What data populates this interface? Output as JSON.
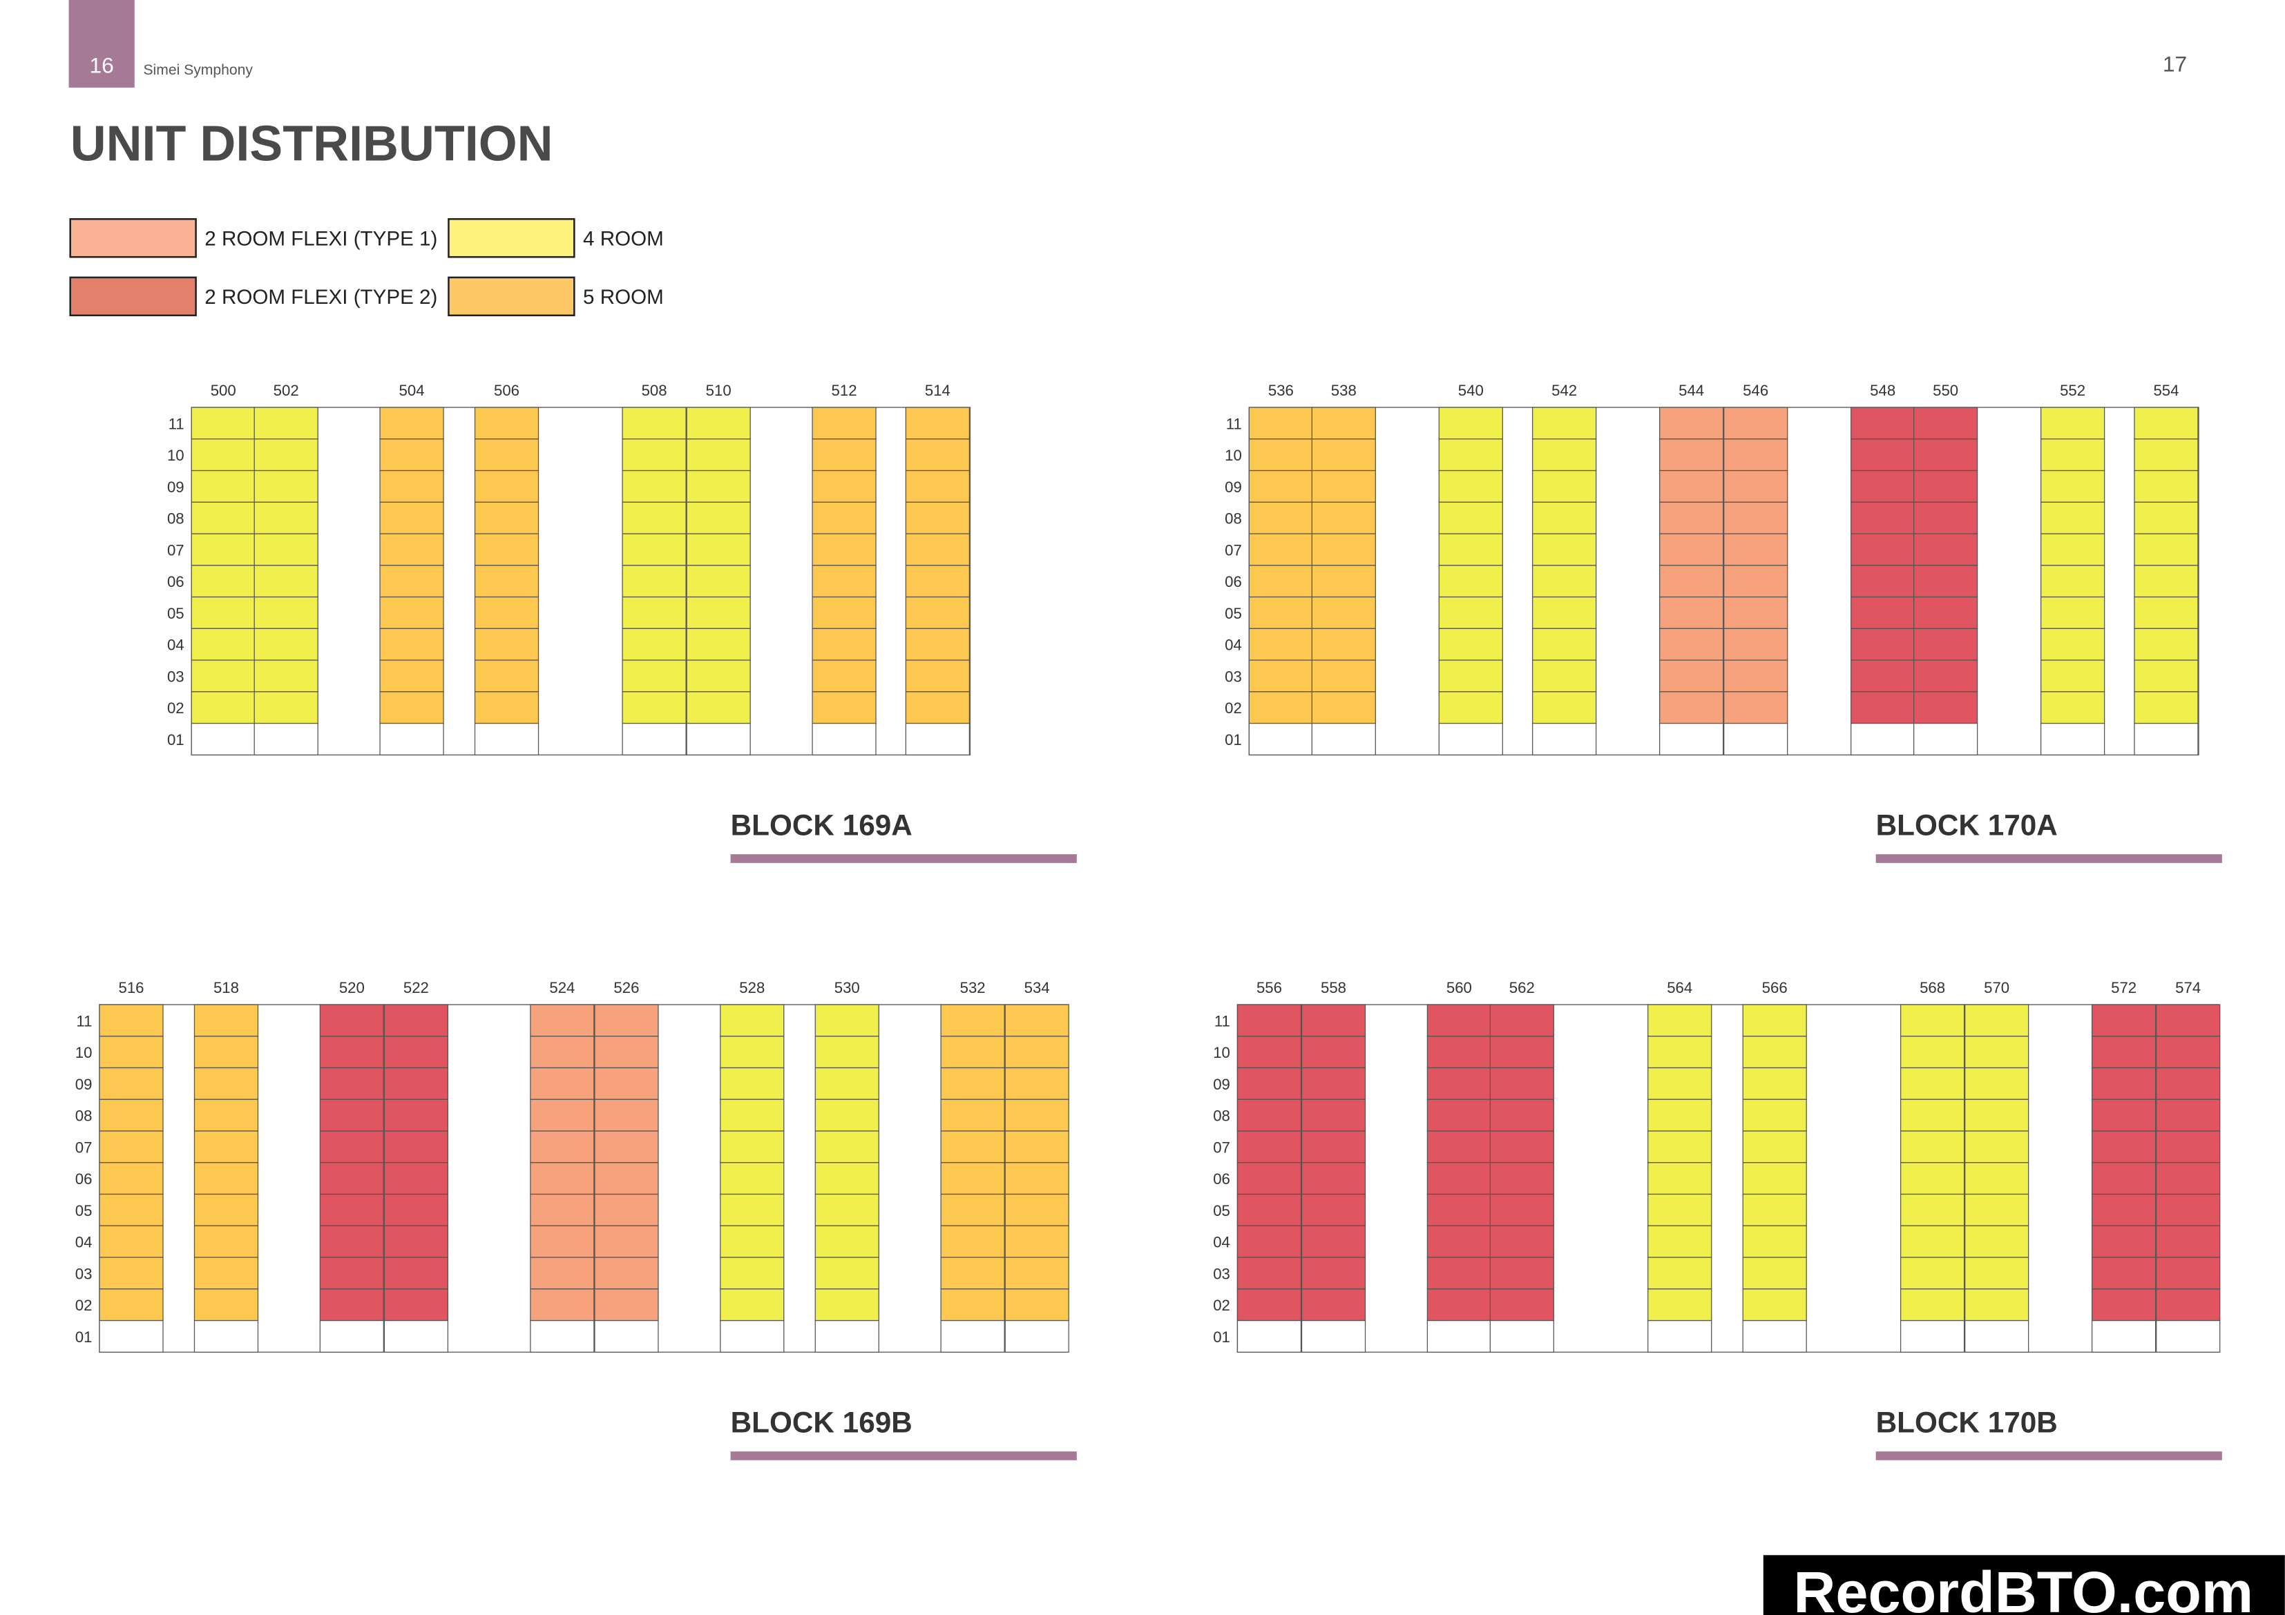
{
  "header": {
    "page_left": "16",
    "brand": "Simei Symphony",
    "page_right": "17"
  },
  "title": "UNIT DISTRIBUTION",
  "legend": [
    {
      "label": "2 ROOM FLEXI (TYPE 1)",
      "color": "#f9b394",
      "cell_color": "#f6a37d"
    },
    {
      "label": "2 ROOM FLEXI (TYPE 2)",
      "color": "#e2806c",
      "cell_color": "#e0555f"
    },
    {
      "label": "4 ROOM",
      "color": "#fff27a",
      "cell_color": "#f0ef4c"
    },
    {
      "label": "5 ROOM",
      "color": "#fdc865",
      "cell_color": "#fdc84f"
    }
  ],
  "floors": [
    "11",
    "10",
    "09",
    "08",
    "07",
    "06",
    "05",
    "04",
    "03",
    "02",
    "01"
  ],
  "blocks": [
    {
      "name": "BLOCK 169A",
      "units": [
        {
          "label": "500",
          "type": 2
        },
        {
          "label": "502",
          "type": 2
        },
        {
          "label": "504",
          "type": 3
        },
        {
          "label": "506",
          "type": 3
        },
        {
          "label": "508",
          "type": 2
        },
        {
          "label": "510",
          "type": 2
        },
        {
          "label": "512",
          "type": 3
        },
        {
          "label": "514",
          "type": 3
        }
      ]
    },
    {
      "name": "BLOCK 170A",
      "units": [
        {
          "label": "536",
          "type": 3
        },
        {
          "label": "538",
          "type": 3
        },
        {
          "label": "540",
          "type": 2
        },
        {
          "label": "542",
          "type": 2
        },
        {
          "label": "544",
          "type": 0
        },
        {
          "label": "546",
          "type": 0
        },
        {
          "label": "548",
          "type": 1
        },
        {
          "label": "550",
          "type": 1
        },
        {
          "label": "552",
          "type": 2
        },
        {
          "label": "554",
          "type": 2
        }
      ]
    },
    {
      "name": "BLOCK 169B",
      "units": [
        {
          "label": "516",
          "type": 3
        },
        {
          "label": "518",
          "type": 3
        },
        {
          "label": "520",
          "type": 1
        },
        {
          "label": "522",
          "type": 1
        },
        {
          "label": "524",
          "type": 0
        },
        {
          "label": "526",
          "type": 0
        },
        {
          "label": "528",
          "type": 2
        },
        {
          "label": "530",
          "type": 2
        },
        {
          "label": "532",
          "type": 3
        },
        {
          "label": "534",
          "type": 3
        }
      ]
    },
    {
      "name": "BLOCK 170B",
      "units": [
        {
          "label": "556",
          "type": 1
        },
        {
          "label": "558",
          "type": 1
        },
        {
          "label": "560",
          "type": 1
        },
        {
          "label": "562",
          "type": 1
        },
        {
          "label": "564",
          "type": 2
        },
        {
          "label": "566",
          "type": 2
        },
        {
          "label": "568",
          "type": 2
        },
        {
          "label": "570",
          "type": 2
        },
        {
          "label": "572",
          "type": 1
        },
        {
          "label": "574",
          "type": 1
        }
      ]
    }
  ],
  "watermark": "RecordBTO.com"
}
